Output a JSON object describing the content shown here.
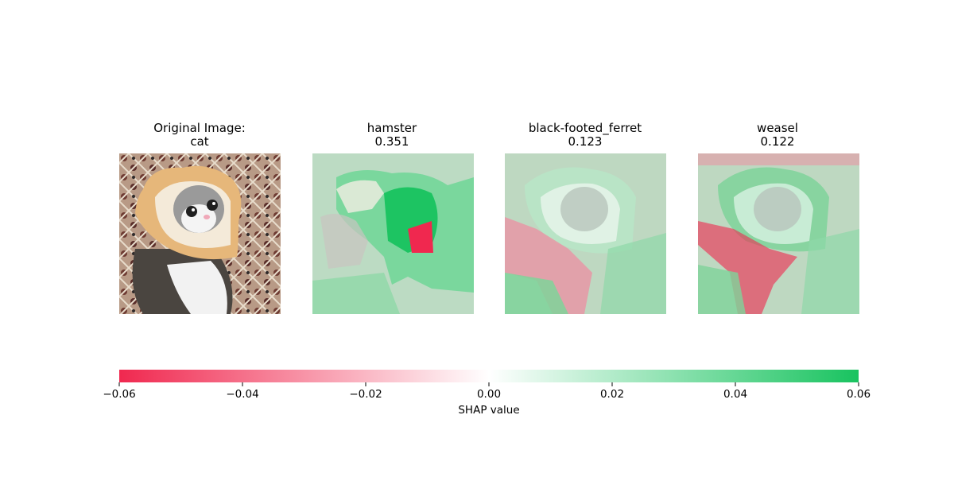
{
  "panels": [
    {
      "title_line1": "Original Image:",
      "title_line2": "cat"
    },
    {
      "title_line1": "hamster",
      "title_line2": "0.351"
    },
    {
      "title_line1": "black-footed_ferret",
      "title_line2": "0.123"
    },
    {
      "title_line1": "weasel",
      "title_line2": "0.122"
    }
  ],
  "chart_data": {
    "type": "heatmap",
    "colorbar": {
      "label": "SHAP value",
      "range": [
        -0.06,
        0.06
      ],
      "ticks": [
        -0.06,
        -0.04,
        -0.02,
        0.0,
        0.02,
        0.04,
        0.06
      ],
      "tick_labels": [
        "−0.06",
        "−0.04",
        "−0.02",
        "0.00",
        "0.02",
        "0.04",
        "0.06"
      ],
      "negative_color": "#f0284f",
      "positive_color": "#18c35f"
    },
    "images": [
      {
        "label": "Original Image:",
        "class": "cat"
      },
      {
        "label": "hamster",
        "score": 0.351
      },
      {
        "label": "black-footed_ferret",
        "score": 0.123
      },
      {
        "label": "weasel",
        "score": 0.122
      }
    ]
  }
}
